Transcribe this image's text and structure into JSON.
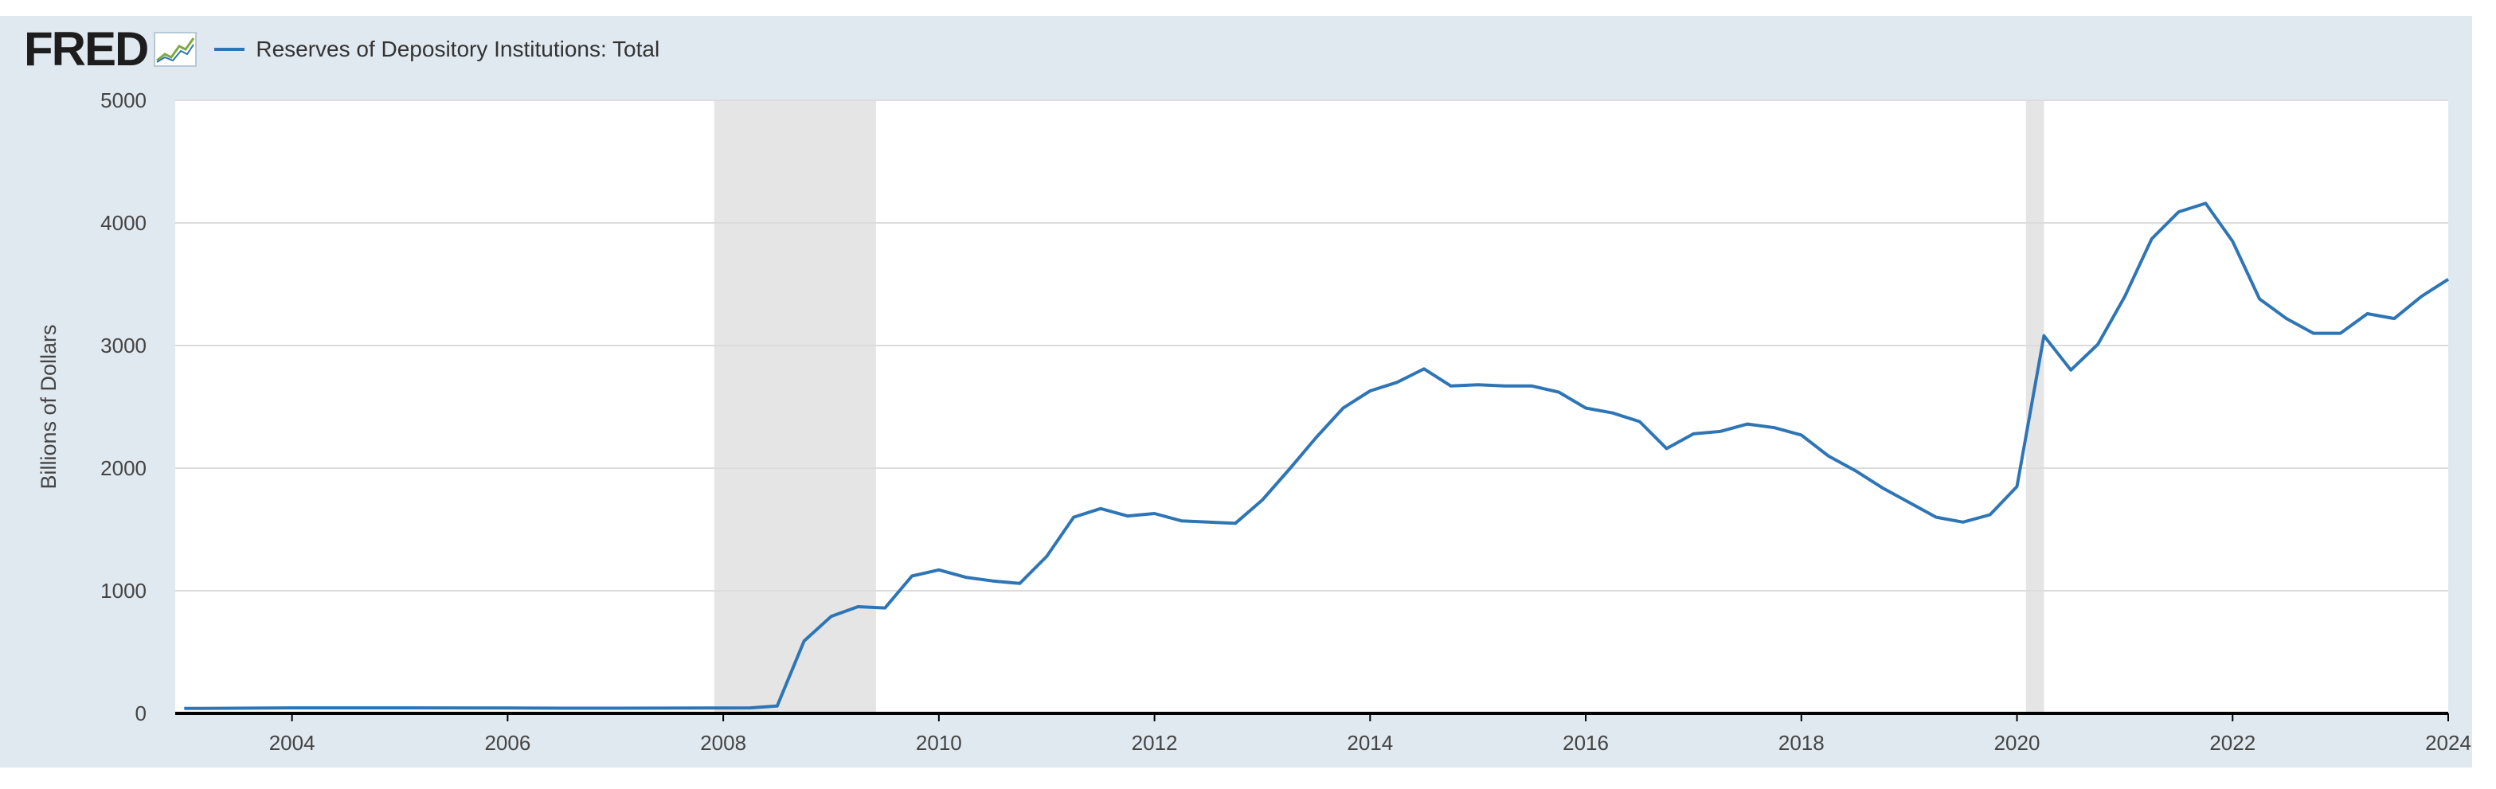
{
  "header": {
    "logo_text": "FRED",
    "logo_icon": "line-chart-icon",
    "legend_label": "Reserves of Depository Institutions: Total"
  },
  "colors": {
    "series": "#2e75b6",
    "recession": "#e5e5e5",
    "frame": "#e1e9f0",
    "plot_bg": "#ffffff"
  },
  "chart_data": {
    "type": "line",
    "title": "",
    "xlabel": "",
    "ylabel": "Billions of Dollars",
    "xlim": [
      "2002-12-01",
      "2024-01-01"
    ],
    "ylim": [
      0,
      5000
    ],
    "grid": "horizontal",
    "legend_position": "top-left",
    "x_ticks": [
      "2004",
      "2006",
      "2008",
      "2010",
      "2012",
      "2014",
      "2016",
      "2018",
      "2020",
      "2022",
      "2024"
    ],
    "y_ticks": [
      "0",
      "1000",
      "2000",
      "3000",
      "4000",
      "5000"
    ],
    "recessions": [
      {
        "start": "2007-12-01",
        "end": "2009-06-01"
      },
      {
        "start": "2020-02-01",
        "end": "2020-04-01"
      }
    ],
    "series": [
      {
        "name": "Reserves of Depository Institutions: Total",
        "points": [
          [
            "2003-01-01",
            40
          ],
          [
            "2003-07-01",
            42
          ],
          [
            "2004-01-01",
            45
          ],
          [
            "2005-01-01",
            45
          ],
          [
            "2006-01-01",
            44
          ],
          [
            "2006-07-01",
            42
          ],
          [
            "2007-01-01",
            42
          ],
          [
            "2007-07-01",
            43
          ],
          [
            "2008-01-01",
            44
          ],
          [
            "2008-04-01",
            45
          ],
          [
            "2008-07-01",
            60
          ],
          [
            "2008-10-01",
            590
          ],
          [
            "2009-01-01",
            790
          ],
          [
            "2009-04-01",
            870
          ],
          [
            "2009-07-01",
            860
          ],
          [
            "2009-10-01",
            1120
          ],
          [
            "2010-01-01",
            1170
          ],
          [
            "2010-04-01",
            1110
          ],
          [
            "2010-07-01",
            1080
          ],
          [
            "2010-10-01",
            1060
          ],
          [
            "2011-01-01",
            1280
          ],
          [
            "2011-04-01",
            1600
          ],
          [
            "2011-07-01",
            1670
          ],
          [
            "2011-10-01",
            1610
          ],
          [
            "2012-01-01",
            1630
          ],
          [
            "2012-04-01",
            1570
          ],
          [
            "2012-07-01",
            1560
          ],
          [
            "2012-10-01",
            1550
          ],
          [
            "2013-01-01",
            1740
          ],
          [
            "2013-04-01",
            1990
          ],
          [
            "2013-07-01",
            2250
          ],
          [
            "2013-10-01",
            2490
          ],
          [
            "2014-01-01",
            2630
          ],
          [
            "2014-04-01",
            2700
          ],
          [
            "2014-07-01",
            2810
          ],
          [
            "2014-10-01",
            2670
          ],
          [
            "2015-01-01",
            2680
          ],
          [
            "2015-04-01",
            2670
          ],
          [
            "2015-07-01",
            2670
          ],
          [
            "2015-10-01",
            2620
          ],
          [
            "2016-01-01",
            2490
          ],
          [
            "2016-04-01",
            2450
          ],
          [
            "2016-07-01",
            2380
          ],
          [
            "2016-10-01",
            2160
          ],
          [
            "2017-01-01",
            2280
          ],
          [
            "2017-04-01",
            2300
          ],
          [
            "2017-07-01",
            2360
          ],
          [
            "2017-10-01",
            2330
          ],
          [
            "2018-01-01",
            2270
          ],
          [
            "2018-04-01",
            2100
          ],
          [
            "2018-07-01",
            1980
          ],
          [
            "2018-10-01",
            1840
          ],
          [
            "2019-01-01",
            1720
          ],
          [
            "2019-04-01",
            1600
          ],
          [
            "2019-07-01",
            1560
          ],
          [
            "2019-10-01",
            1620
          ],
          [
            "2020-01-01",
            1850
          ],
          [
            "2020-04-01",
            3080
          ],
          [
            "2020-07-01",
            2800
          ],
          [
            "2020-10-01",
            3010
          ],
          [
            "2021-01-01",
            3400
          ],
          [
            "2021-04-01",
            3870
          ],
          [
            "2021-07-01",
            4090
          ],
          [
            "2021-10-01",
            4160
          ],
          [
            "2022-01-01",
            3850
          ],
          [
            "2022-04-01",
            3380
          ],
          [
            "2022-07-01",
            3220
          ],
          [
            "2022-10-01",
            3100
          ],
          [
            "2023-01-01",
            3100
          ],
          [
            "2023-04-01",
            3260
          ],
          [
            "2023-07-01",
            3220
          ],
          [
            "2023-10-01",
            3400
          ],
          [
            "2024-01-01",
            3540
          ]
        ]
      }
    ]
  }
}
